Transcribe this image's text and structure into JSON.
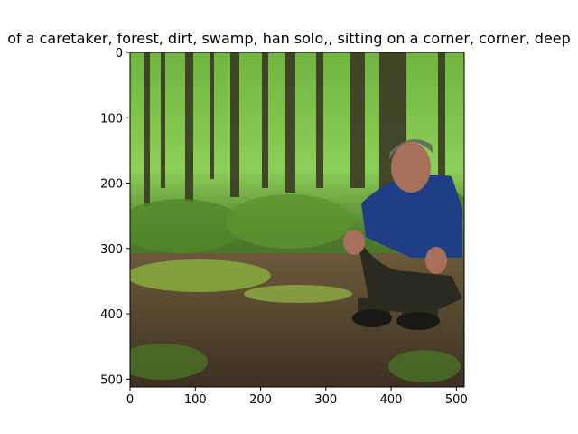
{
  "chart_data": {
    "type": "image",
    "title": "of a caretaker,  forest, dirt, swamp, han solo,, sitting on a corner, corner, deep",
    "xlabel": "",
    "ylabel": "",
    "xlim": [
      0,
      512
    ],
    "ylim": [
      512,
      0
    ],
    "x_ticks": [
      0,
      100,
      200,
      300,
      400,
      500
    ],
    "y_ticks": [
      0,
      100,
      200,
      300,
      400,
      500
    ],
    "x_tick_labels": [
      "0",
      "100",
      "200",
      "300",
      "400",
      "500"
    ],
    "y_tick_labels": [
      "0",
      "100",
      "200",
      "300",
      "400",
      "500"
    ],
    "image_description_colors": {
      "sky_foliage": "#7fbf4a",
      "trees": "#3b3a22",
      "ground": "#5b4632",
      "moss": "#8fbf3e",
      "shirt": "#1e3f86",
      "pants": "#2b2a20",
      "skin": "#a8705a"
    }
  }
}
